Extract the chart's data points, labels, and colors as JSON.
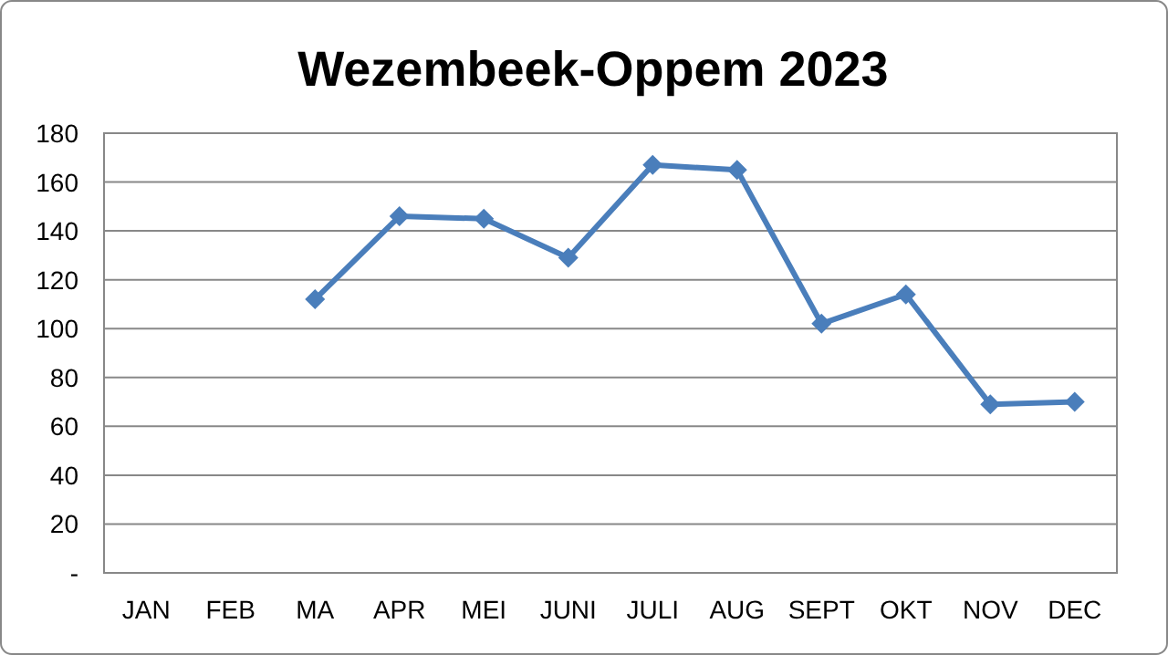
{
  "chart_data": {
    "type": "line",
    "title": "Wezembeek-Oppem 2023",
    "categories": [
      "JAN",
      "FEB",
      "MA",
      "APR",
      "MEI",
      "JUNI",
      "JULI",
      "AUG",
      "SEPT",
      "OKT",
      "NOV",
      "DEC"
    ],
    "values": [
      null,
      null,
      112,
      146,
      145,
      129,
      167,
      165,
      102,
      114,
      69,
      70
    ],
    "color": "#4a7ebb",
    "marker": "diamond",
    "line_style": "solid",
    "ylim": [
      0,
      180
    ],
    "yticks": [
      {
        "value": 0,
        "label": "-"
      },
      20,
      40,
      60,
      80,
      100,
      120,
      140,
      160,
      180
    ],
    "grid": "y"
  }
}
